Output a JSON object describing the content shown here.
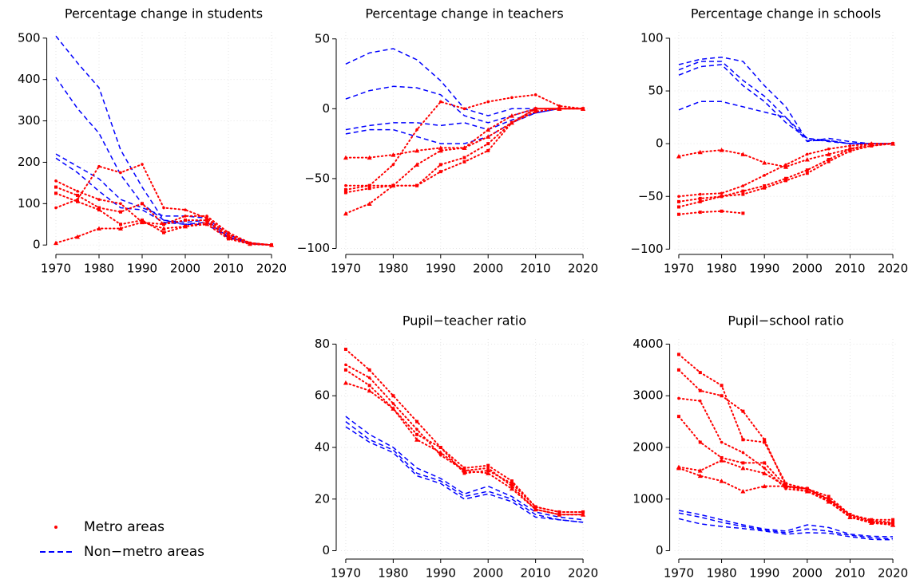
{
  "chart_data": [
    {
      "type": "line",
      "title": "Percentage change in students",
      "x": [
        1970,
        1975,
        1980,
        1985,
        1990,
        1995,
        2000,
        2005,
        2010,
        2015,
        2020
      ],
      "xlim": [
        1969,
        2021
      ],
      "xticks": [
        1970,
        1980,
        1990,
        2000,
        2010,
        2020
      ],
      "ylim": [
        -15,
        515
      ],
      "yticks": [
        0,
        100,
        200,
        300,
        400,
        500
      ],
      "grid": true,
      "series": [
        {
          "color": "#0000ff",
          "style": "dashed",
          "values": [
            505,
            440,
            380,
            230,
            140,
            60,
            55,
            60,
            20,
            5,
            0
          ]
        },
        {
          "color": "#0000ff",
          "style": "dashed",
          "values": [
            405,
            330,
            270,
            170,
            100,
            60,
            50,
            55,
            20,
            3,
            0
          ]
        },
        {
          "color": "#0000ff",
          "style": "dashed",
          "values": [
            220,
            190,
            160,
            110,
            90,
            70,
            70,
            65,
            25,
            5,
            0
          ]
        },
        {
          "color": "#0000ff",
          "style": "dashed",
          "values": [
            210,
            175,
            130,
            90,
            85,
            55,
            50,
            50,
            18,
            3,
            0
          ]
        },
        {
          "color": "#ff0000",
          "style": "markers",
          "marker": "dot",
          "values": [
            90,
            110,
            190,
            175,
            195,
            90,
            85,
            65,
            25,
            5,
            0
          ]
        },
        {
          "color": "#ff0000",
          "style": "markers",
          "marker": "dot",
          "values": [
            155,
            130,
            110,
            100,
            55,
            50,
            70,
            70,
            30,
            5,
            0
          ]
        },
        {
          "color": "#ff0000",
          "style": "markers",
          "marker": "triangle",
          "values": [
            5,
            20,
            40,
            40,
            55,
            40,
            45,
            55,
            20,
            3,
            0
          ]
        },
        {
          "color": "#ff0000",
          "style": "markers",
          "marker": "square",
          "values": [
            125,
            105,
            85,
            50,
            60,
            30,
            45,
            50,
            15,
            2,
            0
          ]
        },
        {
          "color": "#ff0000",
          "style": "markers",
          "marker": "square",
          "values": [
            140,
            120,
            90,
            80,
            100,
            50,
            60,
            60,
            20,
            4,
            0
          ]
        }
      ]
    },
    {
      "type": "line",
      "title": "Percentage change in teachers",
      "x": [
        1970,
        1975,
        1980,
        1985,
        1990,
        1995,
        2000,
        2005,
        2010,
        2015,
        2020
      ],
      "xlim": [
        1969,
        2021
      ],
      "xticks": [
        1970,
        1980,
        1990,
        2000,
        2010,
        2020
      ],
      "ylim": [
        -102,
        55
      ],
      "yticks": [
        {
          "value": -100,
          "label": "−100"
        },
        {
          "value": -50,
          "label": "−50"
        },
        0,
        50
      ],
      "grid": true,
      "series": [
        {
          "color": "#0000ff",
          "style": "dashed",
          "values": [
            32,
            40,
            43,
            35,
            20,
            0,
            -5,
            0,
            0,
            0,
            0
          ]
        },
        {
          "color": "#0000ff",
          "style": "dashed",
          "values": [
            7,
            13,
            16,
            15,
            10,
            -5,
            -10,
            -5,
            0,
            0,
            0
          ]
        },
        {
          "color": "#0000ff",
          "style": "dashed",
          "values": [
            -15,
            -12,
            -10,
            -10,
            -12,
            -10,
            -15,
            -8,
            -3,
            0,
            0
          ]
        },
        {
          "color": "#0000ff",
          "style": "dashed",
          "values": [
            -18,
            -15,
            -15,
            -20,
            -25,
            -25,
            -20,
            -10,
            -3,
            0,
            0
          ]
        },
        {
          "color": "#ff0000",
          "style": "markers",
          "marker": "dot",
          "values": [
            -55,
            -55,
            -40,
            -15,
            5,
            0,
            5,
            8,
            10,
            2,
            0
          ]
        },
        {
          "color": "#ff0000",
          "style": "markers",
          "marker": "triangle",
          "values": [
            -75,
            -68,
            -55,
            -40,
            -30,
            -28,
            -20,
            -10,
            0,
            0,
            0
          ]
        },
        {
          "color": "#ff0000",
          "style": "markers",
          "marker": "triangle",
          "values": [
            -35,
            -35,
            -33,
            -30,
            -28,
            -28,
            -15,
            -5,
            0,
            0,
            0
          ]
        },
        {
          "color": "#ff0000",
          "style": "markers",
          "marker": "square",
          "values": [
            -58,
            -55,
            -55,
            -55,
            -45,
            -38,
            -30,
            -10,
            -2,
            0,
            0
          ]
        },
        {
          "color": "#ff0000",
          "style": "markers",
          "marker": "square",
          "values": [
            -60,
            -57,
            -55,
            -55,
            -40,
            -35,
            -25,
            -10,
            0,
            0,
            0
          ]
        }
      ]
    },
    {
      "type": "line",
      "title": "Percentage change in schools",
      "x": [
        1970,
        1975,
        1980,
        1985,
        1990,
        1995,
        2000,
        2005,
        2010,
        2015,
        2020
      ],
      "xlim": [
        1969,
        2021
      ],
      "xticks": [
        1970,
        1980,
        1990,
        2000,
        2010,
        2020
      ],
      "ylim": [
        -102,
        106
      ],
      "yticks": [
        {
          "value": -100,
          "label": "−100"
        },
        {
          "value": -50,
          "label": "−50"
        },
        0,
        50,
        100
      ],
      "grid": true,
      "series": [
        {
          "color": "#0000ff",
          "style": "dashed",
          "values": [
            75,
            80,
            82,
            78,
            55,
            35,
            3,
            3,
            0,
            0,
            0
          ]
        },
        {
          "color": "#0000ff",
          "style": "dashed",
          "values": [
            70,
            78,
            78,
            60,
            45,
            25,
            2,
            5,
            2,
            0,
            0
          ]
        },
        {
          "color": "#0000ff",
          "style": "dashed",
          "values": [
            65,
            73,
            75,
            55,
            40,
            20,
            5,
            3,
            0,
            0,
            0
          ]
        },
        {
          "color": "#0000ff",
          "style": "dashed",
          "values": [
            32,
            40,
            40,
            35,
            30,
            25,
            5,
            2,
            0,
            0,
            0
          ]
        },
        {
          "color": "#ff0000",
          "style": "markers",
          "marker": "triangle",
          "values": [
            -12,
            -8,
            -6,
            -10,
            -18,
            -22,
            -15,
            -10,
            -5,
            0,
            0
          ]
        },
        {
          "color": "#ff0000",
          "style": "markers",
          "marker": "dot",
          "values": [
            -50,
            -48,
            -47,
            -40,
            -30,
            -20,
            -10,
            -5,
            -2,
            0,
            0
          ]
        },
        {
          "color": "#ff0000",
          "style": "markers",
          "marker": "square",
          "values": [
            -67,
            -65,
            -64,
            -66,
            null,
            null,
            null,
            null,
            null,
            null,
            null
          ]
        },
        {
          "color": "#ff0000",
          "style": "markers",
          "marker": "square",
          "values": [
            -60,
            -55,
            -50,
            -45,
            -40,
            -33,
            -25,
            -15,
            -5,
            -2,
            0
          ]
        },
        {
          "color": "#ff0000",
          "style": "markers",
          "marker": "square",
          "values": [
            -55,
            -52,
            -50,
            -48,
            -42,
            -35,
            -28,
            -17,
            -7,
            -2,
            0
          ]
        }
      ]
    },
    {
      "type": "line",
      "title": "Pupil−teacher ratio",
      "x": [
        1970,
        1975,
        1980,
        1985,
        1990,
        1995,
        2000,
        2005,
        2010,
        2015,
        2020
      ],
      "xlim": [
        1969,
        2021
      ],
      "xticks": [
        1970,
        1980,
        1990,
        2000,
        2010,
        2020
      ],
      "ylim": [
        -2,
        82
      ],
      "yticks": [
        0,
        20,
        40,
        60,
        80
      ],
      "grid": true,
      "series": [
        {
          "color": "#0000ff",
          "style": "dashed",
          "values": [
            52,
            45,
            40,
            32,
            28,
            22,
            25,
            21,
            15,
            13,
            12
          ]
        },
        {
          "color": "#0000ff",
          "style": "dashed",
          "values": [
            50,
            43,
            39,
            30,
            27,
            21,
            23,
            20,
            14,
            12,
            11
          ]
        },
        {
          "color": "#0000ff",
          "style": "dashed",
          "values": [
            48,
            42,
            38,
            29,
            26,
            20,
            22,
            19,
            13,
            12,
            11
          ]
        },
        {
          "color": "#ff0000",
          "style": "markers",
          "marker": "square",
          "values": [
            78,
            70,
            60,
            50,
            40,
            32,
            33,
            27,
            17,
            15,
            15
          ]
        },
        {
          "color": "#ff0000",
          "style": "markers",
          "marker": "dot",
          "values": [
            72,
            67,
            57,
            47,
            37,
            31,
            32,
            25,
            16,
            14,
            14
          ]
        },
        {
          "color": "#ff0000",
          "style": "markers",
          "marker": "triangle",
          "values": [
            65,
            62,
            55,
            43,
            38,
            31,
            30,
            24,
            16,
            14,
            14
          ]
        },
        {
          "color": "#ff0000",
          "style": "markers",
          "marker": "square",
          "values": [
            70,
            64,
            55,
            45,
            40,
            30,
            31,
            26,
            17,
            15,
            15
          ]
        }
      ]
    },
    {
      "type": "line",
      "title": "Pupil−school ratio",
      "x": [
        1970,
        1975,
        1980,
        1985,
        1990,
        1995,
        2000,
        2005,
        2010,
        2015,
        2020
      ],
      "xlim": [
        1969,
        2021
      ],
      "xticks": [
        1970,
        1980,
        1990,
        2000,
        2010,
        2020
      ],
      "ylim": [
        -100,
        4100
      ],
      "yticks": [
        0,
        1000,
        2000,
        3000,
        4000
      ],
      "grid": true,
      "series": [
        {
          "color": "#0000ff",
          "style": "dashed",
          "values": [
            780,
            700,
            600,
            500,
            420,
            380,
            500,
            450,
            320,
            280,
            270
          ]
        },
        {
          "color": "#0000ff",
          "style": "dashed",
          "values": [
            730,
            650,
            550,
            470,
            400,
            350,
            420,
            380,
            300,
            250,
            230
          ]
        },
        {
          "color": "#0000ff",
          "style": "dashed",
          "values": [
            620,
            520,
            470,
            430,
            380,
            320,
            350,
            340,
            270,
            220,
            210
          ]
        },
        {
          "color": "#ff0000",
          "style": "markers",
          "marker": "square",
          "values": [
            3800,
            3450,
            3200,
            2150,
            2100,
            1300,
            1200,
            1050,
            700,
            600,
            600
          ]
        },
        {
          "color": "#ff0000",
          "style": "markers",
          "marker": "square",
          "values": [
            3500,
            3100,
            3000,
            2700,
            2150,
            1250,
            1200,
            1000,
            700,
            580,
            550
          ]
        },
        {
          "color": "#ff0000",
          "style": "markers",
          "marker": "dot",
          "values": [
            2950,
            2900,
            2100,
            1900,
            1600,
            1200,
            1150,
            1000,
            680,
            560,
            530
          ]
        },
        {
          "color": "#ff0000",
          "style": "markers",
          "marker": "square",
          "values": [
            2600,
            2100,
            1800,
            1700,
            1700,
            1250,
            1200,
            980,
            650,
            550,
            520
          ]
        },
        {
          "color": "#ff0000",
          "style": "markers",
          "marker": "triangle",
          "values": [
            1620,
            1550,
            1750,
            1600,
            1500,
            1250,
            1200,
            950,
            650,
            540,
            500
          ]
        },
        {
          "color": "#ff0000",
          "style": "markers",
          "marker": "triangle",
          "values": [
            1600,
            1450,
            1350,
            1150,
            1250,
            1250,
            1150,
            950,
            650,
            540,
            500
          ]
        }
      ]
    }
  ],
  "legend": [
    {
      "name": "Metro areas",
      "color": "#ff0000",
      "style": "markers"
    },
    {
      "name": "Non−metro areas",
      "color": "#0000ff",
      "style": "dashed"
    }
  ]
}
